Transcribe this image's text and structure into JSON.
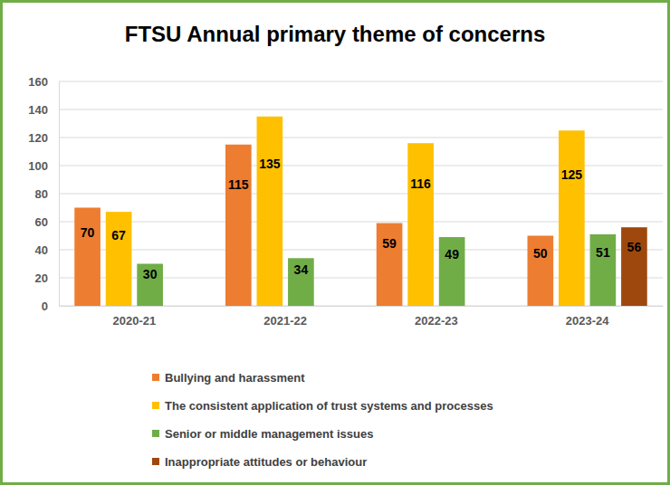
{
  "chart_data": {
    "type": "bar",
    "title": "FTSU Annual primary theme of concerns",
    "categories": [
      "2020-21",
      "2021-22",
      "2022-23",
      "2023-24"
    ],
    "series": [
      {
        "name": "Bullying and harassment",
        "color": "#ED7D31",
        "values": [
          70,
          115,
          59,
          50
        ]
      },
      {
        "name": "The consistent application of trust systems and processes",
        "color": "#FFC000",
        "values": [
          67,
          135,
          116,
          125
        ]
      },
      {
        "name": "Senior or middle management issues",
        "color": "#70AD47",
        "values": [
          30,
          34,
          49,
          51
        ]
      },
      {
        "name": "Inappropriate attitudes or behaviour",
        "color": "#9E480E",
        "values": [
          null,
          null,
          null,
          56
        ]
      }
    ],
    "ylim": [
      0,
      160
    ],
    "yticks": [
      0,
      20,
      40,
      60,
      80,
      100,
      120,
      140,
      160
    ],
    "grid": true,
    "data_labels": true,
    "legend": "bottom"
  }
}
